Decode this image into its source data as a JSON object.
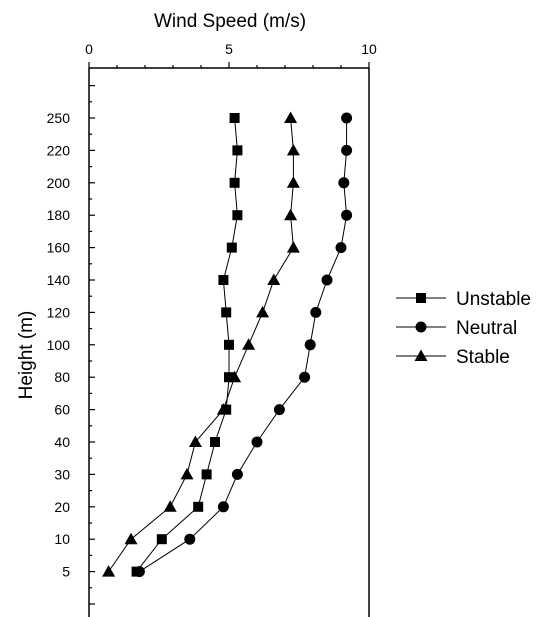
{
  "chart_data": {
    "type": "line",
    "xlabel": "Wind Speed (m/s)",
    "ylabel": "Height (m)",
    "xlim": [
      0,
      10
    ],
    "x_ticks": [
      "0",
      "5",
      "10"
    ],
    "x_axis_position": "top",
    "y_scale": "categorical (evenly spaced levels)",
    "y_categories": [
      "5",
      "10",
      "20",
      "30",
      "40",
      "60",
      "80",
      "100",
      "120",
      "140",
      "160",
      "180",
      "200",
      "220",
      "250"
    ],
    "grid": false,
    "legend_position": "right",
    "series": [
      {
        "name": "Unstable",
        "marker": "square",
        "values": [
          1.7,
          2.6,
          3.9,
          4.2,
          4.5,
          4.9,
          5.0,
          5.0,
          4.9,
          4.8,
          5.1,
          5.3,
          5.2,
          5.3,
          5.2
        ]
      },
      {
        "name": "Neutral",
        "marker": "circle",
        "values": [
          1.8,
          3.6,
          4.8,
          5.3,
          6.0,
          6.8,
          7.7,
          7.9,
          8.1,
          8.5,
          9.0,
          9.2,
          9.1,
          9.2,
          9.2
        ]
      },
      {
        "name": "Stable",
        "marker": "triangle",
        "values": [
          0.7,
          1.5,
          2.9,
          3.5,
          3.8,
          4.8,
          5.2,
          5.7,
          6.2,
          6.6,
          7.3,
          7.2,
          7.3,
          7.3,
          7.2
        ]
      }
    ]
  }
}
